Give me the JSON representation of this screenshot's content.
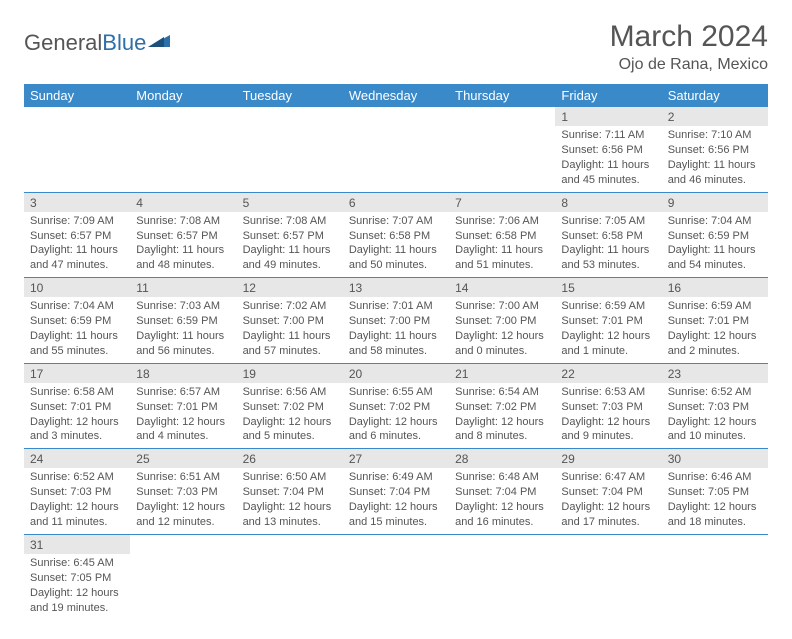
{
  "brand": {
    "general": "General",
    "blue": "Blue"
  },
  "title": {
    "month": "March 2024",
    "location": "Ojo de Rana, Mexico"
  },
  "colors": {
    "header_bg": "#3a89c9",
    "daynum_bg": "#e7e7e7",
    "rule": "#3a89c9",
    "text": "#555555"
  },
  "weekdays": [
    "Sunday",
    "Monday",
    "Tuesday",
    "Wednesday",
    "Thursday",
    "Friday",
    "Saturday"
  ],
  "weeks": [
    [
      null,
      null,
      null,
      null,
      null,
      {
        "n": "1",
        "sunrise": "Sunrise: 7:11 AM",
        "sunset": "Sunset: 6:56 PM",
        "day1": "Daylight: 11 hours",
        "day2": "and 45 minutes."
      },
      {
        "n": "2",
        "sunrise": "Sunrise: 7:10 AM",
        "sunset": "Sunset: 6:56 PM",
        "day1": "Daylight: 11 hours",
        "day2": "and 46 minutes."
      }
    ],
    [
      {
        "n": "3",
        "sunrise": "Sunrise: 7:09 AM",
        "sunset": "Sunset: 6:57 PM",
        "day1": "Daylight: 11 hours",
        "day2": "and 47 minutes."
      },
      {
        "n": "4",
        "sunrise": "Sunrise: 7:08 AM",
        "sunset": "Sunset: 6:57 PM",
        "day1": "Daylight: 11 hours",
        "day2": "and 48 minutes."
      },
      {
        "n": "5",
        "sunrise": "Sunrise: 7:08 AM",
        "sunset": "Sunset: 6:57 PM",
        "day1": "Daylight: 11 hours",
        "day2": "and 49 minutes."
      },
      {
        "n": "6",
        "sunrise": "Sunrise: 7:07 AM",
        "sunset": "Sunset: 6:58 PM",
        "day1": "Daylight: 11 hours",
        "day2": "and 50 minutes."
      },
      {
        "n": "7",
        "sunrise": "Sunrise: 7:06 AM",
        "sunset": "Sunset: 6:58 PM",
        "day1": "Daylight: 11 hours",
        "day2": "and 51 minutes."
      },
      {
        "n": "8",
        "sunrise": "Sunrise: 7:05 AM",
        "sunset": "Sunset: 6:58 PM",
        "day1": "Daylight: 11 hours",
        "day2": "and 53 minutes."
      },
      {
        "n": "9",
        "sunrise": "Sunrise: 7:04 AM",
        "sunset": "Sunset: 6:59 PM",
        "day1": "Daylight: 11 hours",
        "day2": "and 54 minutes."
      }
    ],
    [
      {
        "n": "10",
        "sunrise": "Sunrise: 7:04 AM",
        "sunset": "Sunset: 6:59 PM",
        "day1": "Daylight: 11 hours",
        "day2": "and 55 minutes."
      },
      {
        "n": "11",
        "sunrise": "Sunrise: 7:03 AM",
        "sunset": "Sunset: 6:59 PM",
        "day1": "Daylight: 11 hours",
        "day2": "and 56 minutes."
      },
      {
        "n": "12",
        "sunrise": "Sunrise: 7:02 AM",
        "sunset": "Sunset: 7:00 PM",
        "day1": "Daylight: 11 hours",
        "day2": "and 57 minutes."
      },
      {
        "n": "13",
        "sunrise": "Sunrise: 7:01 AM",
        "sunset": "Sunset: 7:00 PM",
        "day1": "Daylight: 11 hours",
        "day2": "and 58 minutes."
      },
      {
        "n": "14",
        "sunrise": "Sunrise: 7:00 AM",
        "sunset": "Sunset: 7:00 PM",
        "day1": "Daylight: 12 hours",
        "day2": "and 0 minutes."
      },
      {
        "n": "15",
        "sunrise": "Sunrise: 6:59 AM",
        "sunset": "Sunset: 7:01 PM",
        "day1": "Daylight: 12 hours",
        "day2": "and 1 minute."
      },
      {
        "n": "16",
        "sunrise": "Sunrise: 6:59 AM",
        "sunset": "Sunset: 7:01 PM",
        "day1": "Daylight: 12 hours",
        "day2": "and 2 minutes."
      }
    ],
    [
      {
        "n": "17",
        "sunrise": "Sunrise: 6:58 AM",
        "sunset": "Sunset: 7:01 PM",
        "day1": "Daylight: 12 hours",
        "day2": "and 3 minutes."
      },
      {
        "n": "18",
        "sunrise": "Sunrise: 6:57 AM",
        "sunset": "Sunset: 7:01 PM",
        "day1": "Daylight: 12 hours",
        "day2": "and 4 minutes."
      },
      {
        "n": "19",
        "sunrise": "Sunrise: 6:56 AM",
        "sunset": "Sunset: 7:02 PM",
        "day1": "Daylight: 12 hours",
        "day2": "and 5 minutes."
      },
      {
        "n": "20",
        "sunrise": "Sunrise: 6:55 AM",
        "sunset": "Sunset: 7:02 PM",
        "day1": "Daylight: 12 hours",
        "day2": "and 6 minutes."
      },
      {
        "n": "21",
        "sunrise": "Sunrise: 6:54 AM",
        "sunset": "Sunset: 7:02 PM",
        "day1": "Daylight: 12 hours",
        "day2": "and 8 minutes."
      },
      {
        "n": "22",
        "sunrise": "Sunrise: 6:53 AM",
        "sunset": "Sunset: 7:03 PM",
        "day1": "Daylight: 12 hours",
        "day2": "and 9 minutes."
      },
      {
        "n": "23",
        "sunrise": "Sunrise: 6:52 AM",
        "sunset": "Sunset: 7:03 PM",
        "day1": "Daylight: 12 hours",
        "day2": "and 10 minutes."
      }
    ],
    [
      {
        "n": "24",
        "sunrise": "Sunrise: 6:52 AM",
        "sunset": "Sunset: 7:03 PM",
        "day1": "Daylight: 12 hours",
        "day2": "and 11 minutes."
      },
      {
        "n": "25",
        "sunrise": "Sunrise: 6:51 AM",
        "sunset": "Sunset: 7:03 PM",
        "day1": "Daylight: 12 hours",
        "day2": "and 12 minutes."
      },
      {
        "n": "26",
        "sunrise": "Sunrise: 6:50 AM",
        "sunset": "Sunset: 7:04 PM",
        "day1": "Daylight: 12 hours",
        "day2": "and 13 minutes."
      },
      {
        "n": "27",
        "sunrise": "Sunrise: 6:49 AM",
        "sunset": "Sunset: 7:04 PM",
        "day1": "Daylight: 12 hours",
        "day2": "and 15 minutes."
      },
      {
        "n": "28",
        "sunrise": "Sunrise: 6:48 AM",
        "sunset": "Sunset: 7:04 PM",
        "day1": "Daylight: 12 hours",
        "day2": "and 16 minutes."
      },
      {
        "n": "29",
        "sunrise": "Sunrise: 6:47 AM",
        "sunset": "Sunset: 7:04 PM",
        "day1": "Daylight: 12 hours",
        "day2": "and 17 minutes."
      },
      {
        "n": "30",
        "sunrise": "Sunrise: 6:46 AM",
        "sunset": "Sunset: 7:05 PM",
        "day1": "Daylight: 12 hours",
        "day2": "and 18 minutes."
      }
    ],
    [
      {
        "n": "31",
        "sunrise": "Sunrise: 6:45 AM",
        "sunset": "Sunset: 7:05 PM",
        "day1": "Daylight: 12 hours",
        "day2": "and 19 minutes."
      },
      null,
      null,
      null,
      null,
      null,
      null
    ]
  ]
}
